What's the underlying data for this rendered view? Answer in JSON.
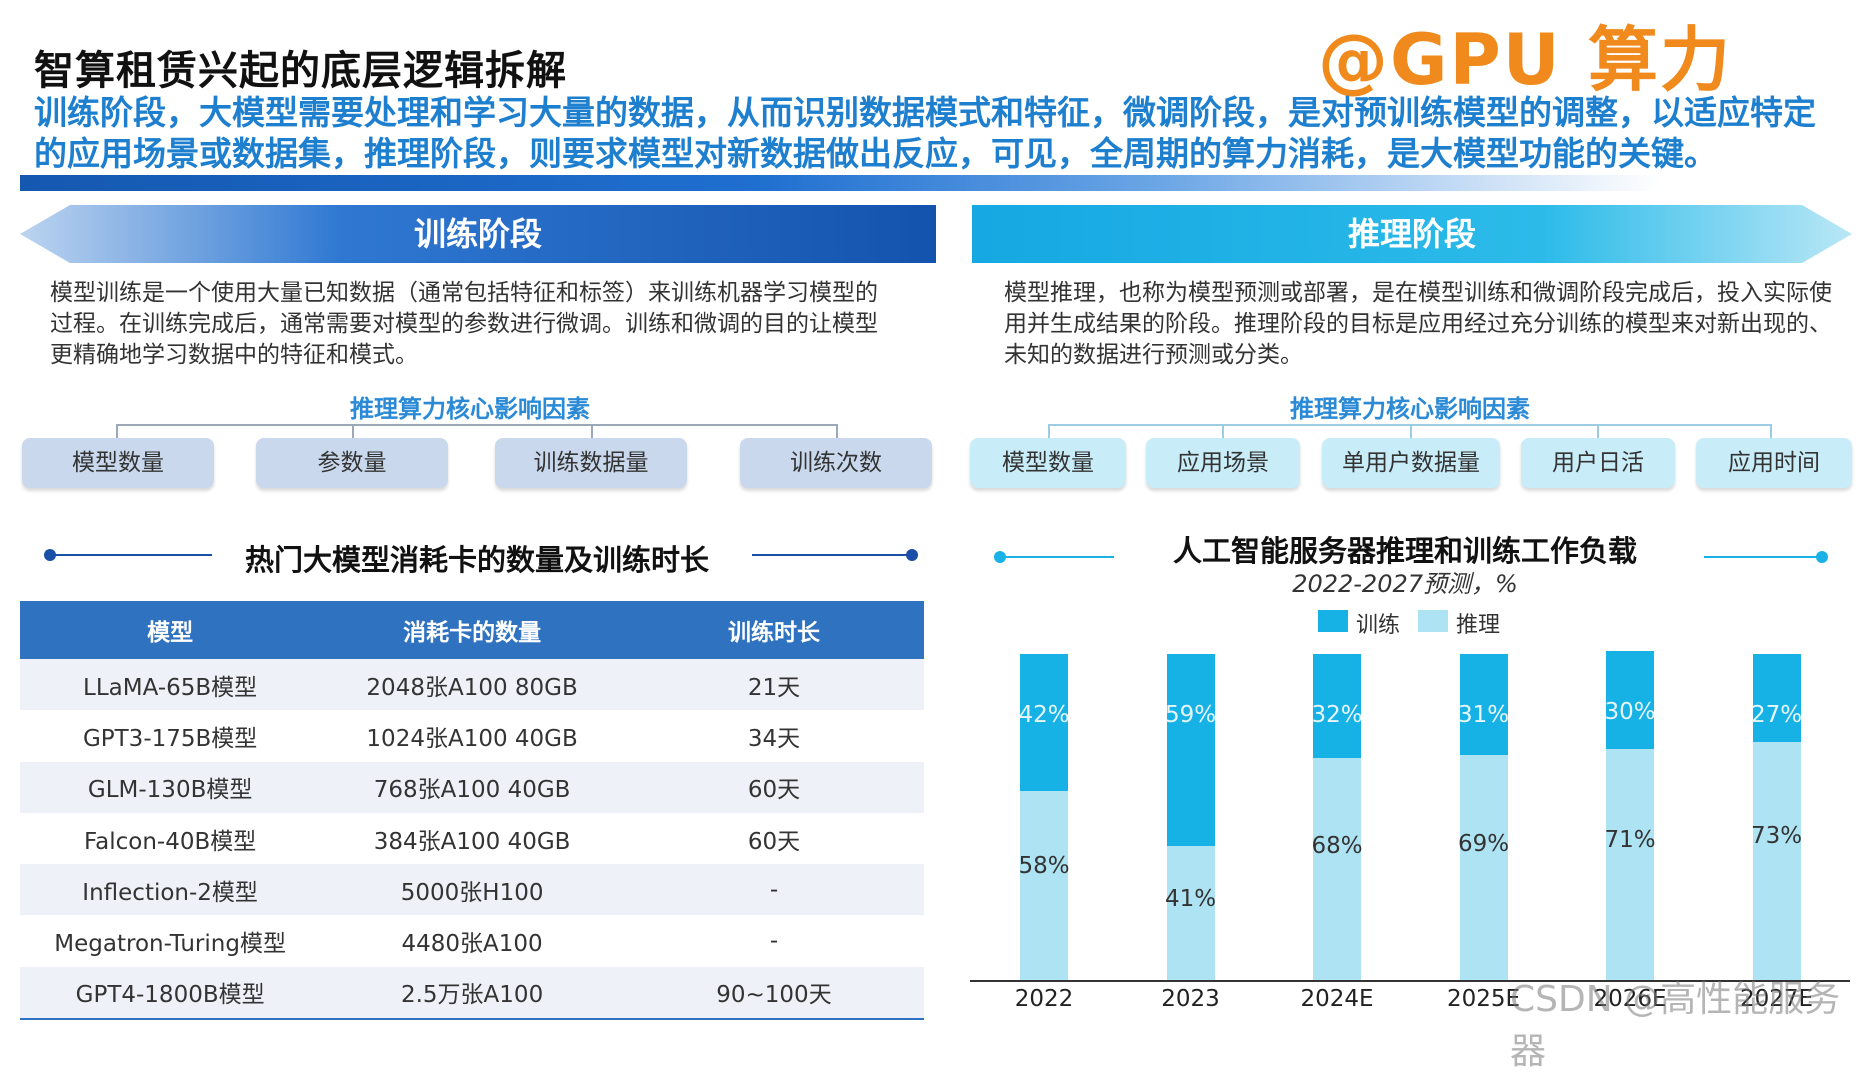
{
  "header": {
    "title": "智算租赁兴起的底层逻辑拆解",
    "brand": "@GPU 算力",
    "intro": "训练阶段，大模型需要处理和学习大量的数据，从而识别数据模式和特征，微调阶段，是对预训练模型的调整，以适应特定的应用场景或数据集，推理阶段，则要求模型对新数据做出反应，可见，全周期的算力消耗，是大模型功能的关键。"
  },
  "training": {
    "banner": "训练阶段",
    "description": "模型训练是一个使用大量已知数据（通常包括特征和标签）来训练机器学习模型的过程。在训练完成后，通常需要对模型的参数进行微调。训练和微调的目的让模型更精确地学习数据中的特征和模式。",
    "factors_title": "推理算力核心影响因素",
    "factors": [
      "模型数量",
      "参数量",
      "训练数据量",
      "训练次数"
    ]
  },
  "inference": {
    "banner": "推理阶段",
    "description": "模型推理，也称为模型预测或部署，是在模型训练和微调阶段完成后，投入实际使用并生成结果的阶段。推理阶段的目标是应用经过充分训练的模型来对新出现的、未知的数据进行预测或分类。",
    "factors_title": "推理算力核心影响因素",
    "factors": [
      "模型数量",
      "应用场景",
      "单用户数据量",
      "用户日活",
      "应用时间"
    ]
  },
  "table": {
    "title": "热门大模型消耗卡的数量及训练时长",
    "headers": [
      "模型",
      "消耗卡的数量",
      "训练时长"
    ],
    "rows": [
      [
        "LLaMA-65B模型",
        "2048张A100 80GB",
        "21天"
      ],
      [
        "GPT3-175B模型",
        "1024张A100 40GB",
        "34天"
      ],
      [
        "GLM-130B模型",
        "768张A100 40GB",
        "60天"
      ],
      [
        "Falcon-40B模型",
        "384张A100 40GB",
        "60天"
      ],
      [
        "Inflection-2模型",
        "5000张H100",
        "-"
      ],
      [
        "Megatron-Turing模型",
        "4480张A100",
        "-"
      ],
      [
        "GPT4-1800B模型",
        "2.5万张A100",
        "90~100天"
      ]
    ]
  },
  "chart_data": {
    "type": "bar",
    "stacked": true,
    "title": "人工智能服务器推理和训练工作负载",
    "subtitle": "2022-2027预测，%",
    "categories": [
      "2022",
      "2023",
      "2024E",
      "2025E",
      "2026E",
      "2027E"
    ],
    "series": [
      {
        "name": "推理",
        "values": [
          58,
          41,
          68,
          69,
          71,
          73
        ],
        "color": "#aee3f3"
      },
      {
        "name": "训练",
        "values": [
          42,
          59,
          32,
          31,
          30,
          27
        ],
        "color": "#16b2e6"
      }
    ],
    "ylim": [
      0,
      100
    ],
    "legend": "top",
    "value_labels": true
  },
  "footer": {
    "watermark": "CSDN @高性能服务器"
  },
  "colors": {
    "accent_blue": "#1e7fcf",
    "banner_left": "#1a5fbf",
    "banner_right": "#19b1e6",
    "brand_orange": "#f08a1c"
  }
}
